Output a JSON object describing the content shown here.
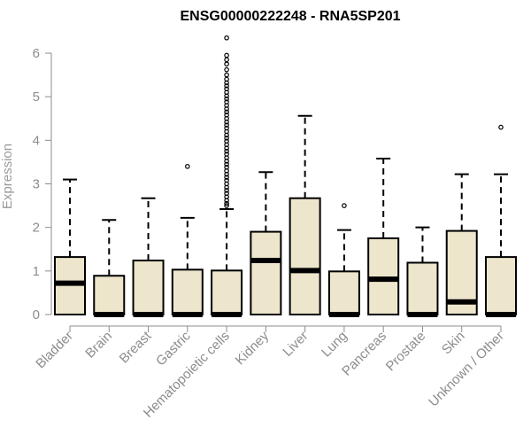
{
  "chart_data": {
    "type": "box",
    "title": "ENSG00000222248 - RNA5SP201",
    "ylabel": "Expression",
    "xlabel": "",
    "ylim": [
      0,
      6
    ],
    "yticks": [
      0,
      1,
      2,
      3,
      4,
      5,
      6
    ],
    "grid": false,
    "colors": {
      "box_fill": "#ede6cc",
      "box_stroke": "#000000",
      "axis": "#8c8c8c",
      "title": "#000000"
    },
    "categories": [
      "Bladder",
      "Brain",
      "Breast",
      "Gastric",
      "Hematopoietic cells",
      "Kidney",
      "Liver",
      "Lung",
      "Pancreas",
      "Prostate",
      "Skin",
      "Unknown / Other"
    ],
    "boxes": [
      {
        "category": "Bladder",
        "whisker_low": 0,
        "q1": 0,
        "median": 0.72,
        "q3": 1.32,
        "whisker_high": 3.1,
        "outliers": []
      },
      {
        "category": "Brain",
        "whisker_low": 0,
        "q1": 0,
        "median": 0,
        "q3": 0.89,
        "whisker_high": 2.17,
        "outliers": []
      },
      {
        "category": "Breast",
        "whisker_low": 0,
        "q1": 0,
        "median": 0,
        "q3": 1.24,
        "whisker_high": 2.67,
        "outliers": []
      },
      {
        "category": "Gastric",
        "whisker_low": 0,
        "q1": 0,
        "median": 0,
        "q3": 1.03,
        "whisker_high": 2.22,
        "outliers": [
          3.4
        ]
      },
      {
        "category": "Hematopoietic cells",
        "whisker_low": 0,
        "q1": 0,
        "median": 0,
        "q3": 1.01,
        "whisker_high": 2.42,
        "outliers": [
          2.5,
          2.55,
          2.62,
          2.7,
          2.78,
          2.85,
          2.92,
          3.0,
          3.08,
          3.15,
          3.22,
          3.3,
          3.38,
          3.45,
          3.52,
          3.6,
          3.68,
          3.75,
          3.82,
          3.9,
          3.98,
          4.05,
          4.12,
          4.2,
          4.28,
          4.35,
          4.42,
          4.5,
          4.58,
          4.65,
          4.72,
          4.8,
          4.88,
          4.95,
          5.02,
          5.1,
          5.18,
          5.25,
          5.32,
          5.4,
          5.5,
          5.62,
          5.75,
          5.85,
          5.95,
          6.35
        ]
      },
      {
        "category": "Kidney",
        "whisker_low": 0,
        "q1": 0,
        "median": 1.24,
        "q3": 1.9,
        "whisker_high": 3.27,
        "outliers": []
      },
      {
        "category": "Liver",
        "whisker_low": 0,
        "q1": 0,
        "median": 1.01,
        "q3": 2.67,
        "whisker_high": 4.56,
        "outliers": []
      },
      {
        "category": "Lung",
        "whisker_low": 0,
        "q1": 0,
        "median": 0,
        "q3": 0.99,
        "whisker_high": 1.94,
        "outliers": [
          2.5
        ]
      },
      {
        "category": "Pancreas",
        "whisker_low": 0,
        "q1": 0,
        "median": 0.81,
        "q3": 1.75,
        "whisker_high": 3.58,
        "outliers": []
      },
      {
        "category": "Prostate",
        "whisker_low": 0,
        "q1": 0,
        "median": 0,
        "q3": 1.19,
        "whisker_high": 2.0,
        "outliers": []
      },
      {
        "category": "Skin",
        "whisker_low": 0,
        "q1": 0,
        "median": 0.29,
        "q3": 1.92,
        "whisker_high": 3.22,
        "outliers": []
      },
      {
        "category": "Unknown / Other",
        "whisker_low": 0,
        "q1": 0,
        "median": 0,
        "q3": 1.32,
        "whisker_high": 3.22,
        "outliers": [
          4.3
        ]
      }
    ]
  }
}
